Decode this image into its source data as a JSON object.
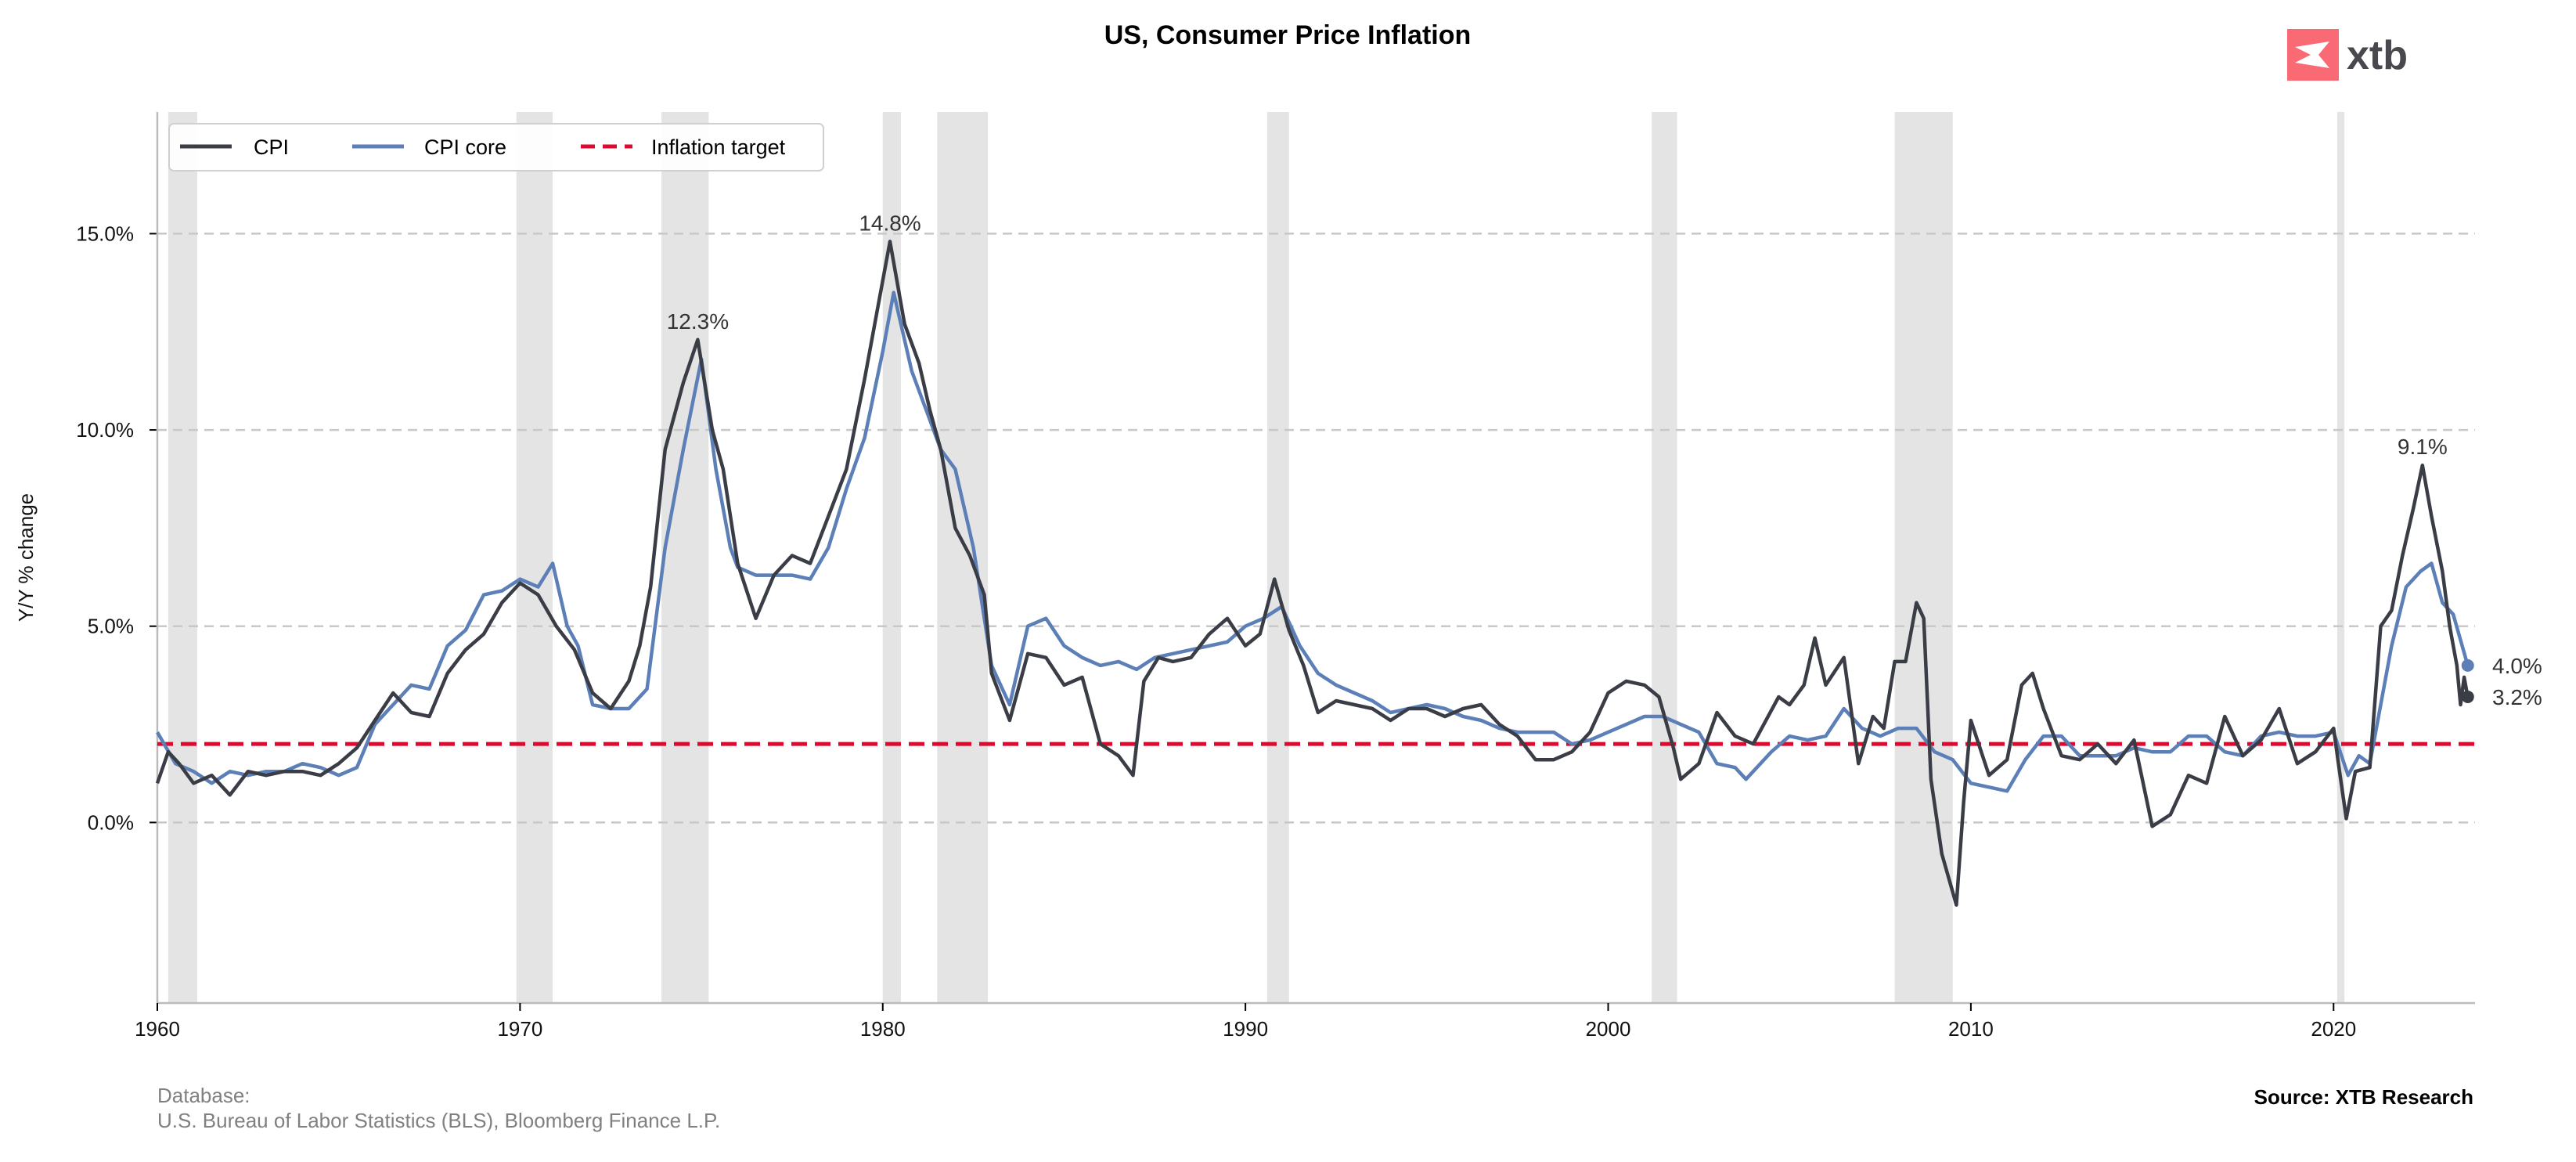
{
  "logo": {
    "text": "xtb",
    "color": "#f96a74"
  },
  "chart_data": {
    "type": "line",
    "title": "US, Consumer Price Inflation",
    "xlabel": "",
    "ylabel": "Y/Y % change",
    "xlim": [
      1960,
      2023.9
    ],
    "ylim": [
      -4.6,
      18.1
    ],
    "xticks": [
      1960,
      1970,
      1980,
      1990,
      2000,
      2010,
      2020
    ],
    "xtick_labels": [
      "1960",
      "1970",
      "1980",
      "1990",
      "2000",
      "2010",
      "2020"
    ],
    "yticks": [
      0,
      5,
      10,
      15
    ],
    "ytick_labels": [
      "0.0%",
      "5.0%",
      "10.0%",
      "15.0%"
    ],
    "grid": "horizontal dashed",
    "legend_position": "top-left",
    "recessions": [
      [
        1960.3,
        1961.1
      ],
      [
        1969.9,
        1970.9
      ],
      [
        1973.9,
        1975.2
      ],
      [
        1980.0,
        1980.5
      ],
      [
        1981.5,
        1982.9
      ],
      [
        1990.6,
        1991.2
      ],
      [
        2001.2,
        2001.9
      ],
      [
        2007.9,
        2009.5
      ],
      [
        2020.1,
        2020.3
      ]
    ],
    "series": [
      {
        "name": "CPI",
        "color": "#3a3d46",
        "x": [
          1960,
          1960.3,
          1960.6,
          1961,
          1961.5,
          1962,
          1962.5,
          1963,
          1963.5,
          1964,
          1964.5,
          1965,
          1965.5,
          1966,
          1966.5,
          1967,
          1967.5,
          1968,
          1968.5,
          1969,
          1969.5,
          1970,
          1970.5,
          1971,
          1971.5,
          1972,
          1972.5,
          1973,
          1973.3,
          1973.6,
          1974,
          1974.5,
          1974.9,
          1975.3,
          1975.6,
          1976,
          1976.5,
          1977,
          1977.5,
          1978,
          1978.5,
          1979,
          1979.5,
          1979.9,
          1980.2,
          1980.6,
          1981,
          1981.3,
          1981.6,
          1982,
          1982.4,
          1982.8,
          1983,
          1983.5,
          1984,
          1984.5,
          1985,
          1985.5,
          1986,
          1986.5,
          1986.9,
          1987.2,
          1987.6,
          1988,
          1988.5,
          1989,
          1989.5,
          1990,
          1990.4,
          1990.8,
          1991.2,
          1991.6,
          1992,
          1992.5,
          1993,
          1993.5,
          1994,
          1994.5,
          1995,
          1995.5,
          1996,
          1996.5,
          1997,
          1997.5,
          1998,
          1998.5,
          1999,
          1999.5,
          2000,
          2000.5,
          2001,
          2001.4,
          2001.8,
          2002,
          2002.5,
          2003,
          2003.5,
          2004,
          2004.7,
          2005,
          2005.4,
          2005.7,
          2006,
          2006.5,
          2006.9,
          2007.3,
          2007.6,
          2007.9,
          2008.2,
          2008.5,
          2008.7,
          2008.9,
          2009.2,
          2009.6,
          2009.8,
          2010,
          2010.5,
          2011,
          2011.4,
          2011.7,
          2012,
          2012.5,
          2013,
          2013.5,
          2014,
          2014.5,
          2015,
          2015.5,
          2016,
          2016.5,
          2017,
          2017.5,
          2018,
          2018.5,
          2019,
          2019.5,
          2020,
          2020.15,
          2020.35,
          2020.6,
          2021,
          2021.3,
          2021.6,
          2021.9,
          2022.2,
          2022.45,
          2022.7,
          2023,
          2023.2,
          2023.4,
          2023.5,
          2023.6,
          2023.7
        ],
        "y": [
          1.0,
          1.8,
          1.5,
          1.0,
          1.2,
          0.7,
          1.3,
          1.2,
          1.3,
          1.3,
          1.2,
          1.5,
          1.9,
          2.6,
          3.3,
          2.8,
          2.7,
          3.8,
          4.4,
          4.8,
          5.6,
          6.1,
          5.8,
          5.0,
          4.4,
          3.3,
          2.9,
          3.6,
          4.5,
          6.0,
          9.5,
          11.2,
          12.3,
          10.0,
          9.0,
          6.6,
          5.2,
          6.3,
          6.8,
          6.6,
          7.8,
          9.0,
          11.3,
          13.3,
          14.8,
          12.7,
          11.7,
          10.5,
          9.5,
          7.5,
          6.8,
          5.8,
          3.8,
          2.6,
          4.3,
          4.2,
          3.5,
          3.7,
          2.0,
          1.7,
          1.2,
          3.6,
          4.2,
          4.1,
          4.2,
          4.8,
          5.2,
          4.5,
          4.8,
          6.2,
          4.9,
          4.0,
          2.8,
          3.1,
          3.0,
          2.9,
          2.6,
          2.9,
          2.9,
          2.7,
          2.9,
          3.0,
          2.5,
          2.2,
          1.6,
          1.6,
          1.8,
          2.3,
          3.3,
          3.6,
          3.5,
          3.2,
          1.9,
          1.1,
          1.5,
          2.8,
          2.2,
          2.0,
          3.2,
          3.0,
          3.5,
          4.7,
          3.5,
          4.2,
          1.5,
          2.7,
          2.4,
          4.1,
          4.1,
          5.6,
          5.2,
          1.1,
          -0.8,
          -2.1,
          0.5,
          2.6,
          1.2,
          1.6,
          3.5,
          3.8,
          2.9,
          1.7,
          1.6,
          2.0,
          1.5,
          2.1,
          -0.1,
          0.2,
          1.2,
          1.0,
          2.7,
          1.7,
          2.1,
          2.9,
          1.5,
          1.8,
          2.4,
          1.4,
          0.1,
          1.3,
          1.4,
          5.0,
          5.4,
          6.8,
          8.0,
          9.1,
          7.8,
          6.4,
          5.0,
          4.0,
          3.0,
          3.7,
          3.2
        ]
      },
      {
        "name": "CPI core",
        "color": "#5b7fb6",
        "x": [
          1960,
          1960.5,
          1961,
          1961.5,
          1962,
          1962.5,
          1963,
          1963.5,
          1964,
          1964.5,
          1965,
          1965.5,
          1966,
          1966.5,
          1967,
          1967.5,
          1968,
          1968.5,
          1969,
          1969.5,
          1970,
          1970.5,
          1970.9,
          1971.3,
          1971.6,
          1972,
          1972.5,
          1973,
          1973.5,
          1974,
          1974.5,
          1975,
          1975.4,
          1975.8,
          1976,
          1976.5,
          1977,
          1977.5,
          1978,
          1978.5,
          1979,
          1979.5,
          1980,
          1980.3,
          1980.8,
          1981.2,
          1981.6,
          1982,
          1982.5,
          1983,
          1983.5,
          1984,
          1984.5,
          1985,
          1985.5,
          1986,
          1986.5,
          1987,
          1987.5,
          1988,
          1988.5,
          1989,
          1989.5,
          1990,
          1990.5,
          1991,
          1991.5,
          1992,
          1992.5,
          1993,
          1993.5,
          1994,
          1994.5,
          1995,
          1995.5,
          1996,
          1996.5,
          1997,
          1997.5,
          1998,
          1998.5,
          1999,
          1999.5,
          2000,
          2000.5,
          2001,
          2001.5,
          2002,
          2002.5,
          2003,
          2003.5,
          2003.8,
          2004.5,
          2005,
          2005.5,
          2006,
          2006.5,
          2007,
          2007.5,
          2008,
          2008.5,
          2009,
          2009.5,
          2010,
          2010.5,
          2011,
          2011.5,
          2012,
          2012.5,
          2013,
          2013.5,
          2014,
          2014.5,
          2015,
          2015.5,
          2016,
          2016.5,
          2017,
          2017.5,
          2018,
          2018.5,
          2019,
          2019.5,
          2020,
          2020.4,
          2020.7,
          2021,
          2021.3,
          2021.6,
          2022,
          2022.4,
          2022.7,
          2023,
          2023.3,
          2023.7
        ],
        "y": [
          2.3,
          1.5,
          1.3,
          1.0,
          1.3,
          1.2,
          1.3,
          1.3,
          1.5,
          1.4,
          1.2,
          1.4,
          2.5,
          3.0,
          3.5,
          3.4,
          4.5,
          4.9,
          5.8,
          5.9,
          6.2,
          6.0,
          6.6,
          5.0,
          4.5,
          3.0,
          2.9,
          2.9,
          3.4,
          7.0,
          9.5,
          11.8,
          9.0,
          7.0,
          6.5,
          6.3,
          6.3,
          6.3,
          6.2,
          7.0,
          8.5,
          9.8,
          12.0,
          13.5,
          11.5,
          10.5,
          9.5,
          9.0,
          7.0,
          4.0,
          3.0,
          5.0,
          5.2,
          4.5,
          4.2,
          4.0,
          4.1,
          3.9,
          4.2,
          4.3,
          4.4,
          4.5,
          4.6,
          5.0,
          5.2,
          5.5,
          4.5,
          3.8,
          3.5,
          3.3,
          3.1,
          2.8,
          2.9,
          3.0,
          2.9,
          2.7,
          2.6,
          2.4,
          2.3,
          2.3,
          2.3,
          2.0,
          2.1,
          2.3,
          2.5,
          2.7,
          2.7,
          2.5,
          2.3,
          1.5,
          1.4,
          1.1,
          1.8,
          2.2,
          2.1,
          2.2,
          2.9,
          2.4,
          2.2,
          2.4,
          2.4,
          1.8,
          1.6,
          1.0,
          0.9,
          0.8,
          1.6,
          2.2,
          2.2,
          1.7,
          1.7,
          1.7,
          1.9,
          1.8,
          1.8,
          2.2,
          2.2,
          1.8,
          1.7,
          2.2,
          2.3,
          2.2,
          2.2,
          2.3,
          1.2,
          1.7,
          1.5,
          3.0,
          4.5,
          6.0,
          6.4,
          6.6,
          5.6,
          5.3,
          4.0
        ]
      },
      {
        "name": "Inflation target",
        "color": "#d90b2f",
        "y": 2.0
      }
    ],
    "annotations": [
      {
        "text": "12.3%",
        "x": 1974.9,
        "y": 12.3
      },
      {
        "text": "14.8%",
        "x": 1980.2,
        "y": 14.8
      },
      {
        "text": "9.1%",
        "x": 2022.45,
        "y": 9.1
      }
    ],
    "end_labels": [
      {
        "text": "4.0%",
        "series": "CPI core",
        "value": 4.0
      },
      {
        "text": "3.2%",
        "series": "CPI",
        "value": 3.2
      }
    ]
  },
  "footer": {
    "database_label": "Database:",
    "database_sources": "U.S. Bureau of Labor Statistics (BLS), Bloomberg Finance L.P.",
    "source": "Source: XTB Research"
  }
}
